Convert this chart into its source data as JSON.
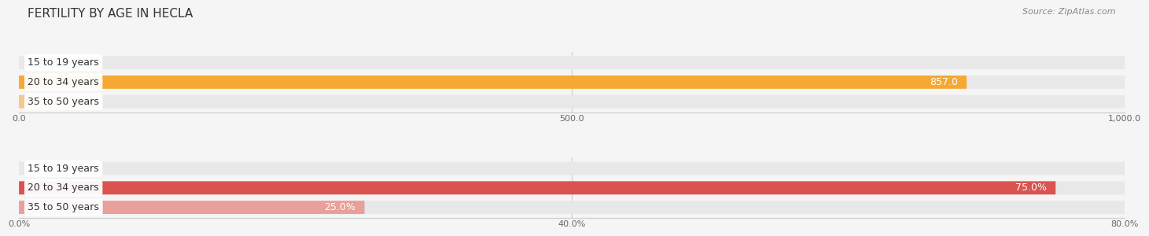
{
  "title": "FERTILITY BY AGE IN HECLA",
  "source": "Source: ZipAtlas.com",
  "top_chart": {
    "categories": [
      "15 to 19 years",
      "20 to 34 years",
      "35 to 50 years"
    ],
    "values": [
      0.0,
      857.0,
      67.0
    ],
    "max_val": 1000.0,
    "xticks": [
      0.0,
      500.0,
      1000.0
    ],
    "xtick_labels": [
      "0.0",
      "500.0",
      "1,000.0"
    ],
    "bar_colors": [
      "#f5c98a",
      "#f5a832",
      "#f5c98a"
    ],
    "bar_bg_color": "#e8e8e8"
  },
  "bottom_chart": {
    "categories": [
      "15 to 19 years",
      "20 to 34 years",
      "35 to 50 years"
    ],
    "values": [
      0.0,
      75.0,
      25.0
    ],
    "max_val": 80.0,
    "xticks": [
      0.0,
      40.0,
      80.0
    ],
    "xtick_labels": [
      "0.0%",
      "40.0%",
      "80.0%"
    ],
    "bar_colors": [
      "#e8a09a",
      "#d9534f",
      "#e8a09a"
    ],
    "bar_bg_color": "#e8e8e8"
  },
  "bg_color": "#f5f5f5",
  "title_fontsize": 11,
  "source_fontsize": 8,
  "label_fontsize": 9,
  "category_fontsize": 9,
  "tick_fontsize": 8
}
